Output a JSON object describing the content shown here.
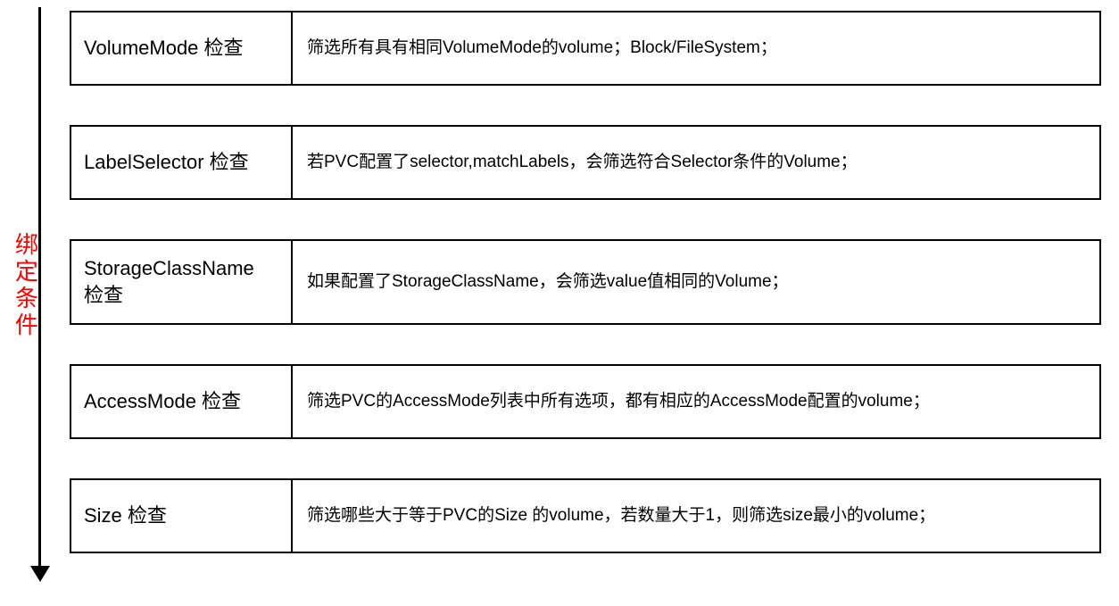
{
  "diagram": {
    "type": "flowchart",
    "side_label": "绑定条件",
    "side_label_color": "#ff0000",
    "side_label_fontsize": 26,
    "arrow_color": "#000000",
    "arrow_width": 3,
    "border_color": "#000000",
    "border_width": 2,
    "background_color": "#ffffff",
    "label_cell_width": 248,
    "row_gap": 44,
    "left_fontsize": 22,
    "right_fontsize": 19,
    "rows": [
      {
        "label": "VolumeMode 检查",
        "desc": "筛选所有具有相同VolumeMode的volume；Block/FileSystem；",
        "height": 84
      },
      {
        "label": "LabelSelector 检查",
        "desc": "若PVC配置了selector,matchLabels，会筛选符合Selector条件的Volume；",
        "height": 84
      },
      {
        "label": "StorageClassName 检查",
        "desc": "如果配置了StorageClassName，会筛选value值相同的Volume；",
        "height": 96
      },
      {
        "label": "AccessMode 检查",
        "desc": "筛选PVC的AccessMode列表中所有选项，都有相应的AccessMode配置的volume；",
        "height": 84
      },
      {
        "label": "Size 检查",
        "desc": "筛选哪些大于等于PVC的Size 的volume，若数量大于1，则筛选size最小的volume；",
        "height": 84
      }
    ]
  }
}
